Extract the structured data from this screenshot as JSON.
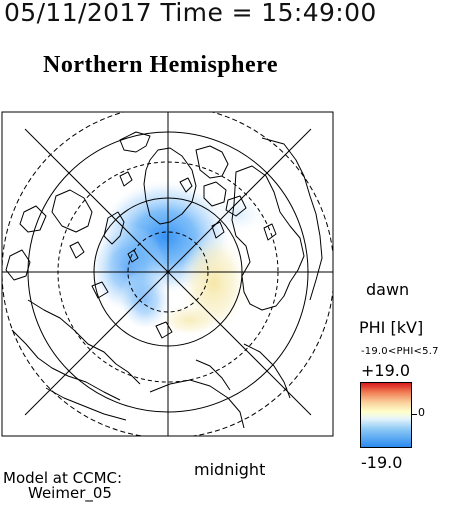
{
  "header": {
    "timestamp": "05/11/2017 Time = 15:49:00",
    "title": "Northern Hemisphere"
  },
  "map": {
    "dawn_label": "dawn",
    "midnight_label": "midnight"
  },
  "colorbar": {
    "title": "PHI [kV]",
    "range_text": "-19.0<PHI<5.7",
    "max_label": "+19.0",
    "min_label": "-19.0",
    "zero_label": "0",
    "positive_color": "#d81c1c",
    "neutral_color": "#ffffcc",
    "negative_color": "#2a8af0"
  },
  "footer": {
    "model_line1": "Model at CCMC:",
    "model_line2": "Weimer_05"
  }
}
